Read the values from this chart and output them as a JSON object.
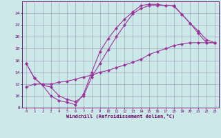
{
  "xlabel": "Windchill (Refroidissement éolien,°C)",
  "bg_color": "#cde8e8",
  "grid_color": "#9999bb",
  "line_color": "#993399",
  "spine_color": "#660066",
  "tick_color": "#660066",
  "xlim": [
    -0.5,
    23.5
  ],
  "ylim": [
    8,
    26
  ],
  "xticks": [
    0,
    1,
    2,
    3,
    4,
    5,
    6,
    7,
    8,
    9,
    10,
    11,
    12,
    13,
    14,
    15,
    16,
    17,
    18,
    19,
    20,
    21,
    22,
    23
  ],
  "yticks": [
    8,
    10,
    12,
    14,
    16,
    18,
    20,
    22,
    24
  ],
  "line1_x": [
    0,
    1,
    2,
    3,
    4,
    5,
    6,
    7,
    8,
    9,
    10,
    11,
    12,
    13,
    14,
    15,
    16,
    17,
    18,
    19,
    20,
    21,
    22,
    23
  ],
  "line1_y": [
    15.5,
    13.0,
    11.8,
    10.0,
    9.2,
    8.9,
    8.5,
    10.3,
    14.0,
    17.5,
    19.7,
    21.5,
    23.0,
    24.2,
    25.3,
    25.5,
    25.5,
    25.3,
    25.3,
    23.8,
    22.3,
    20.6,
    19.0,
    19.0
  ],
  "line2_x": [
    0,
    1,
    2,
    3,
    4,
    5,
    6,
    7,
    8,
    9,
    10,
    11,
    12,
    13,
    14,
    15,
    16,
    17,
    18,
    19,
    20,
    21,
    22,
    23
  ],
  "line2_y": [
    15.5,
    13.0,
    11.8,
    11.5,
    10.0,
    9.4,
    9.0,
    10.0,
    13.2,
    15.5,
    17.8,
    20.0,
    22.0,
    23.9,
    24.8,
    25.3,
    25.3,
    25.3,
    25.2,
    23.8,
    22.3,
    21.0,
    19.5,
    19.0
  ],
  "line3_x": [
    0,
    1,
    2,
    3,
    4,
    5,
    6,
    7,
    8,
    9,
    10,
    11,
    12,
    13,
    14,
    15,
    16,
    17,
    18,
    19,
    20,
    21,
    22,
    23
  ],
  "line3_y": [
    11.5,
    12.0,
    12.0,
    12.0,
    12.3,
    12.5,
    12.8,
    13.2,
    13.5,
    14.0,
    14.3,
    14.8,
    15.2,
    15.7,
    16.2,
    17.0,
    17.5,
    18.0,
    18.5,
    18.8,
    19.0,
    19.0,
    19.0,
    19.0
  ]
}
